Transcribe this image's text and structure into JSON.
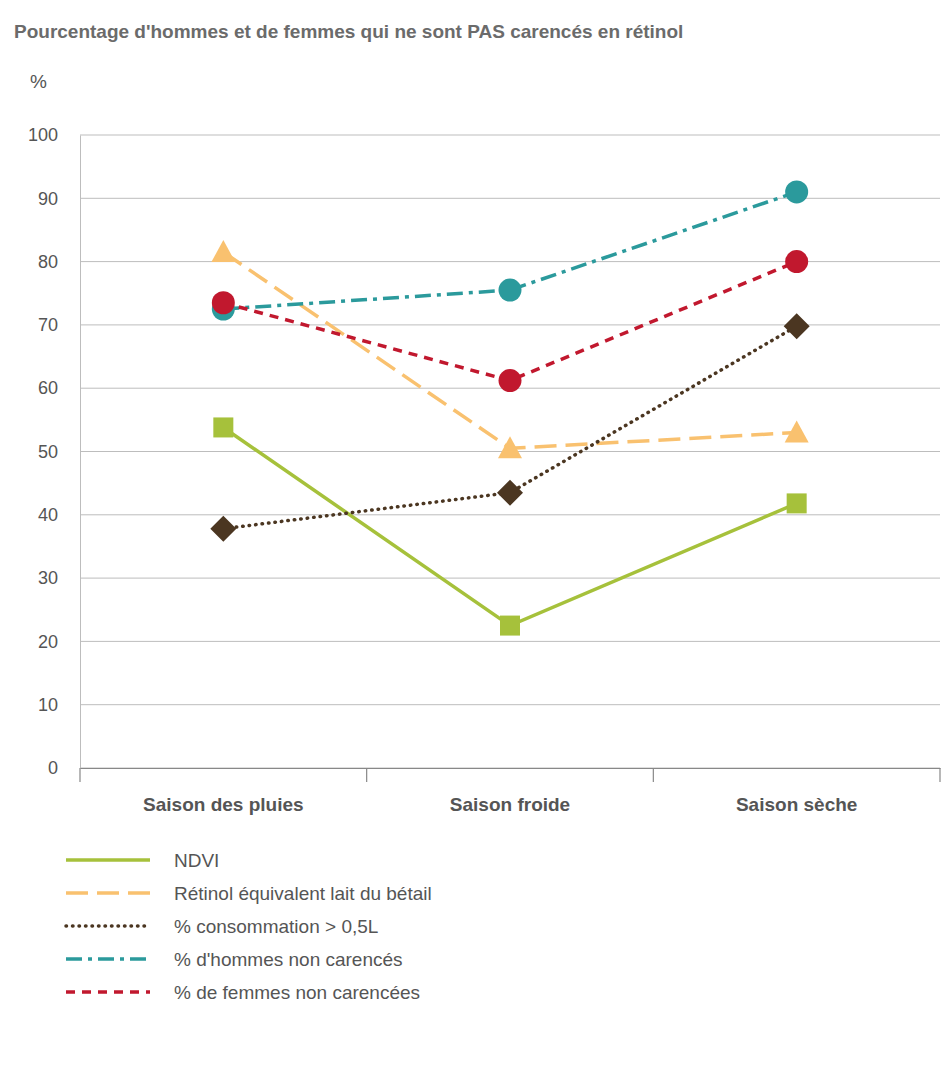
{
  "chart_data": {
    "type": "line",
    "title": "Pourcentage d'hommes et de femmes qui ne sont PAS carencés en rétinol",
    "ylabel": "%",
    "categories": [
      "Saison des pluies",
      "Saison froide",
      "Saison sèche"
    ],
    "ylim": [
      0,
      100
    ],
    "yticks": [
      0,
      10,
      20,
      30,
      40,
      50,
      60,
      70,
      80,
      90,
      100
    ],
    "grid": true,
    "legend": "bottom-left",
    "series": [
      {
        "name": "NDVI",
        "color": "#a6c13b",
        "marker": "square",
        "line_style": "solid",
        "values": [
          53.8,
          22.5,
          41.8
        ]
      },
      {
        "name": "Rétinol équivalent lait du bétail",
        "color": "#f9c16f",
        "marker": "triangle",
        "line_style": "long-dash",
        "values": [
          81.5,
          50.5,
          53
        ]
      },
      {
        "name": "% consommation > 0,5L",
        "color": "#4b3621",
        "marker": "diamond",
        "line_style": "dotted",
        "values": [
          37.8,
          43.5,
          69.8
        ]
      },
      {
        "name": "% d'hommes non carencés",
        "color": "#2b9a9c",
        "marker": "circle",
        "line_style": "dash-dot",
        "values": [
          72.5,
          75.5,
          91
        ]
      },
      {
        "name": "% de femmes non carencées",
        "color": "#c1182e",
        "marker": "circle",
        "line_style": "dashed",
        "values": [
          73.5,
          61.2,
          80
        ]
      }
    ]
  }
}
